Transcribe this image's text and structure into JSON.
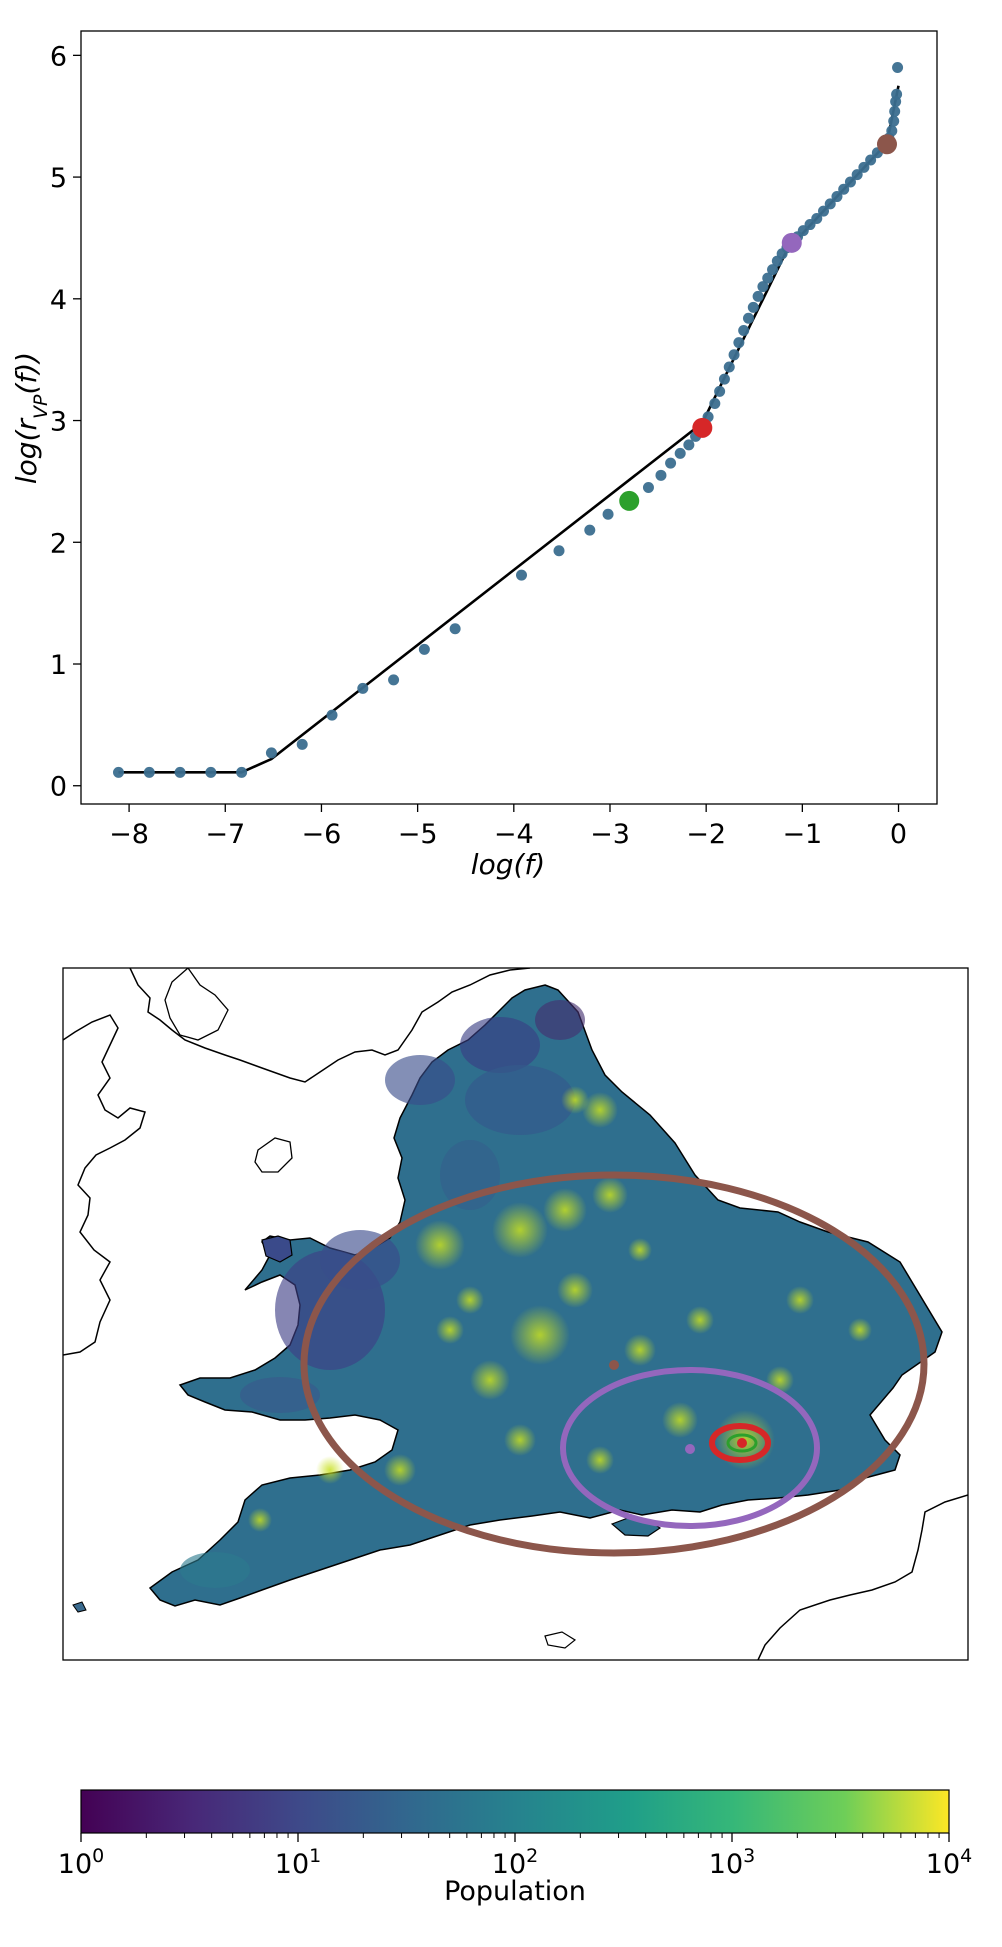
{
  "chart_data": [
    {
      "type": "scatter",
      "xlabel": "log(f)",
      "ylabel": "log(r_VP(f))",
      "xlim": [
        -8.5,
        0.4
      ],
      "ylim": [
        -0.15,
        6.2
      ],
      "x_ticks": [
        -8,
        -7,
        -6,
        -5,
        -4,
        -3,
        -2,
        -1,
        0
      ],
      "x_tick_labels": [
        "−8",
        "−7",
        "−6",
        "−5",
        "−4",
        "−3",
        "−2",
        "−1",
        "0"
      ],
      "y_ticks": [
        0,
        1,
        2,
        3,
        4,
        5,
        6
      ],
      "y_tick_labels": [
        "0",
        "1",
        "2",
        "3",
        "4",
        "5",
        "6"
      ],
      "grid": false,
      "scatter_color": "#3b6e8f",
      "points": [
        [
          -8.11,
          0.11
        ],
        [
          -7.79,
          0.11
        ],
        [
          -7.47,
          0.11
        ],
        [
          -7.15,
          0.11
        ],
        [
          -6.83,
          0.11
        ],
        [
          -6.52,
          0.27
        ],
        [
          -6.2,
          0.34
        ],
        [
          -5.89,
          0.58
        ],
        [
          -5.57,
          0.8
        ],
        [
          -5.25,
          0.87
        ],
        [
          -4.93,
          1.12
        ],
        [
          -4.61,
          1.29
        ],
        [
          -3.92,
          1.73
        ],
        [
          -3.53,
          1.93
        ],
        [
          -3.21,
          2.1
        ],
        [
          -3.02,
          2.23
        ],
        [
          -2.8,
          2.34
        ],
        [
          -2.6,
          2.45
        ],
        [
          -2.47,
          2.55
        ],
        [
          -2.37,
          2.65
        ],
        [
          -2.27,
          2.73
        ],
        [
          -2.18,
          2.8
        ],
        [
          -2.11,
          2.87
        ],
        [
          -2.04,
          2.94
        ],
        [
          -1.98,
          3.03
        ],
        [
          -1.91,
          3.14
        ],
        [
          -1.86,
          3.24
        ],
        [
          -1.81,
          3.34
        ],
        [
          -1.76,
          3.44
        ],
        [
          -1.71,
          3.54
        ],
        [
          -1.66,
          3.64
        ],
        [
          -1.61,
          3.74
        ],
        [
          -1.56,
          3.84
        ],
        [
          -1.51,
          3.93
        ],
        [
          -1.46,
          4.02
        ],
        [
          -1.41,
          4.1
        ],
        [
          -1.36,
          4.17
        ],
        [
          -1.31,
          4.24
        ],
        [
          -1.26,
          4.31
        ],
        [
          -1.21,
          4.37
        ],
        [
          -1.16,
          4.42
        ],
        [
          -1.11,
          4.46
        ],
        [
          -1.05,
          4.51
        ],
        [
          -0.99,
          4.56
        ],
        [
          -0.92,
          4.61
        ],
        [
          -0.85,
          4.66
        ],
        [
          -0.78,
          4.72
        ],
        [
          -0.71,
          4.78
        ],
        [
          -0.64,
          4.84
        ],
        [
          -0.57,
          4.9
        ],
        [
          -0.5,
          4.96
        ],
        [
          -0.43,
          5.02
        ],
        [
          -0.36,
          5.08
        ],
        [
          -0.29,
          5.14
        ],
        [
          -0.22,
          5.2
        ],
        [
          -0.16,
          5.26
        ],
        [
          -0.1,
          5.32
        ],
        [
          -0.07,
          5.38
        ],
        [
          -0.05,
          5.46
        ],
        [
          -0.04,
          5.54
        ],
        [
          -0.03,
          5.62
        ],
        [
          -0.02,
          5.68
        ],
        [
          -0.01,
          5.9
        ]
      ],
      "fit_line": {
        "color": "#000000",
        "points": [
          [
            -8.11,
            0.11
          ],
          [
            -6.83,
            0.11
          ],
          [
            -6.52,
            0.22
          ],
          [
            -2.04,
            2.98
          ],
          [
            -1.16,
            4.4
          ],
          [
            -0.12,
            5.28
          ],
          [
            0.0,
            5.75
          ]
        ]
      },
      "highlights": [
        {
          "x": -2.8,
          "y": 2.34,
          "color": "#2ca02c"
        },
        {
          "x": -2.04,
          "y": 2.94,
          "color": "#d62728"
        },
        {
          "x": -1.11,
          "y": 4.46,
          "color": "#9467bd"
        },
        {
          "x": -0.12,
          "y": 5.27,
          "color": "#8c564b"
        }
      ]
    },
    {
      "type": "heatmap",
      "colormap": "viridis",
      "colorbar": {
        "label": "Population",
        "scale": "log",
        "range": [
          1,
          10000
        ],
        "ticks": [
          {
            "base": "10",
            "exp": "0"
          },
          {
            "base": "10",
            "exp": "1"
          },
          {
            "base": "10",
            "exp": "2"
          },
          {
            "base": "10",
            "exp": "3"
          },
          {
            "base": "10",
            "exp": "4"
          }
        ]
      },
      "rings": [
        {
          "color": "#8c564b"
        },
        {
          "color": "#9467bd"
        },
        {
          "color": "#d62728"
        },
        {
          "color": "#2ca02c"
        }
      ]
    }
  ]
}
